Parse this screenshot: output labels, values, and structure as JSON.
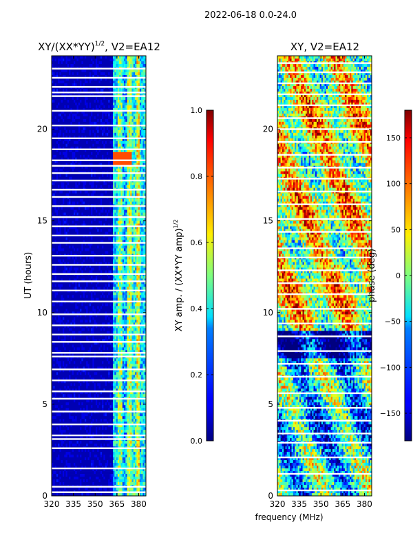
{
  "suptitle": "2022-06-18 0.0-24.0",
  "chart_data": [
    {
      "type": "heatmap",
      "title_main": "XY/(XX*YY)",
      "title_sup": "1/2",
      "title_tail": ", V2=EA12",
      "xlabel": "",
      "ylabel": "UT (hours)",
      "xlim": [
        320,
        385
      ],
      "ylim": [
        0,
        24
      ],
      "xticks": [
        320,
        335,
        350,
        365,
        380
      ],
      "yticks": [
        0,
        5,
        10,
        15,
        20
      ],
      "colorscale": "jet",
      "description_bands": {
        "low_freq_value": 0.05,
        "high_freq_start_mhz": 362,
        "high_freq_values": [
          0.35,
          0.5,
          0.3,
          0.55,
          0.4,
          0.6,
          0.35
        ]
      },
      "gap_rows_ut": [
        0.2,
        0.5,
        1.5,
        2.6,
        3.1,
        3.3,
        3.9,
        4.6,
        5.3,
        5.7,
        6.3,
        6.9,
        7.6,
        7.8,
        8.4,
        8.8,
        9.3,
        9.9,
        10.6,
        11.2,
        11.7,
        12.1,
        12.6,
        13.1,
        13.8,
        14.2,
        14.7,
        15.2,
        15.8,
        16.3,
        16.7,
        17.2,
        17.6,
        18.0,
        18.3,
        18.9,
        19.5,
        20.2,
        21.0,
        21.8,
        22.0,
        22.3,
        22.8,
        23.3
      ]
    },
    {
      "type": "colorbar",
      "label_main": "XY amp. / (XX*YY amp)",
      "label_sup": "1/2",
      "range": [
        0.0,
        1.0
      ],
      "ticks": [
        "0.0",
        "0.2",
        "0.4",
        "0.6",
        "0.8",
        "1.0"
      ],
      "tick_values": [
        0.0,
        0.2,
        0.4,
        0.6,
        0.8,
        1.0
      ],
      "colorscale": "jet"
    },
    {
      "type": "heatmap",
      "title": "XY, V2=EA12",
      "xlabel": "frequency (MHz)",
      "ylabel": "",
      "xlim": [
        320,
        385
      ],
      "ylim": [
        0,
        24
      ],
      "xticks": [
        320,
        335,
        350,
        365,
        380
      ],
      "yticks": [
        0,
        5,
        10,
        15,
        20
      ],
      "colorscale": "jet",
      "value_range": [
        -180,
        180
      ],
      "gap_rows_ut": [
        0.3,
        1.2,
        2.1,
        2.9,
        3.4,
        4.1,
        4.8,
        5.6,
        6.5,
        7.2,
        7.9,
        8.7,
        9.4,
        10.2,
        11.0,
        11.6,
        12.3,
        13.0,
        13.5,
        14.4,
        15.1,
        15.9,
        16.6,
        17.3,
        17.9,
        18.6,
        19.3,
        20.0,
        20.6,
        21.3,
        21.9,
        22.5,
        23.1,
        23.6
      ]
    },
    {
      "type": "colorbar",
      "label": "phase (deg)",
      "range": [
        -180,
        180
      ],
      "ticks": [
        "−150",
        "−100",
        "−50",
        "0",
        "50",
        "100",
        "150"
      ],
      "tick_values": [
        -150,
        -100,
        -50,
        0,
        50,
        100,
        150
      ],
      "colorscale": "jet"
    }
  ]
}
